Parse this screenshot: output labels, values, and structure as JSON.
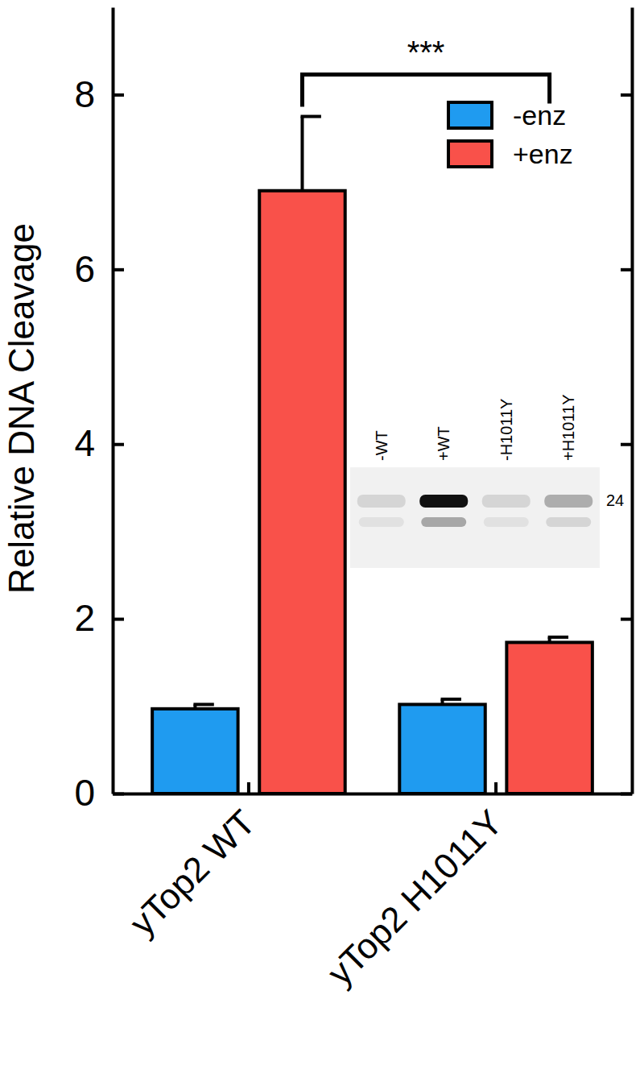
{
  "chart_data": {
    "type": "bar",
    "y_label": "Relative DNA Cleavage",
    "categories": [
      "yTop2 WT",
      "yTop2 H1011Y"
    ],
    "series": [
      {
        "name": "-enz",
        "color": "#1f9bf0",
        "values": [
          0.97,
          1.02
        ],
        "errors": [
          0.05,
          0.06
        ]
      },
      {
        "name": "+enz",
        "color": "#f9514a",
        "values": [
          6.9,
          1.73
        ],
        "errors": [
          0.85,
          0.06
        ]
      }
    ],
    "ylim": [
      0,
      9
    ],
    "yticks": [
      0,
      2,
      4,
      6,
      8
    ],
    "legend": "upper right",
    "annotations": [
      {
        "text": "***",
        "between": [
          "yTop2 WT",
          "yTop2 H1011Y"
        ],
        "series": "+enz"
      }
    ],
    "inset": {
      "lane_labels": [
        "-WT",
        "+WT",
        "-H1011Y",
        "+H1011Y"
      ],
      "band_label": "24"
    }
  }
}
